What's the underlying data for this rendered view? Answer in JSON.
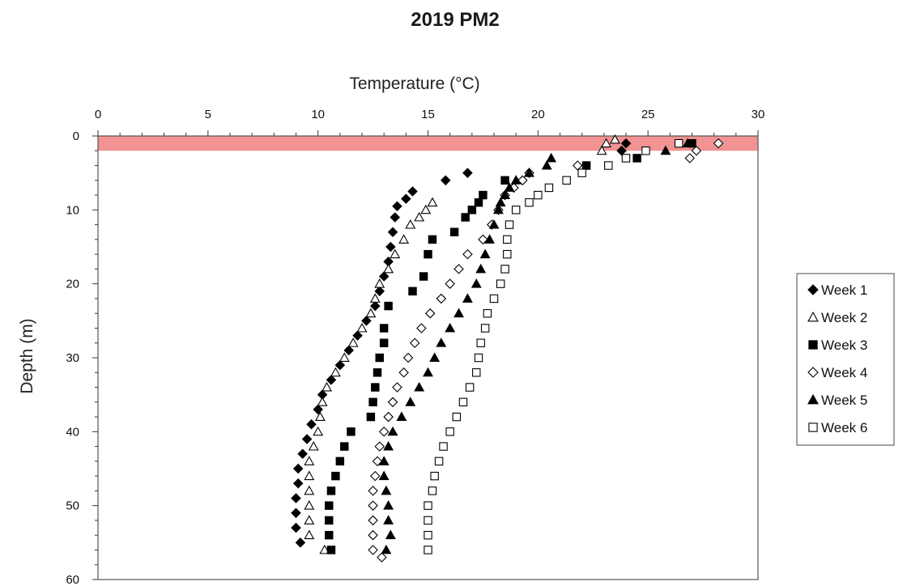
{
  "chart_data": {
    "type": "scatter",
    "title": "2019 PM2",
    "xlabel": "Temperature (°C)",
    "ylabel": "Depth (m)",
    "xlim": [
      0,
      30
    ],
    "ylim": [
      0,
      60
    ],
    "y_inverted": true,
    "x_axis_position": "top",
    "xticks": [
      0,
      5,
      10,
      15,
      20,
      25,
      30
    ],
    "yticks": [
      0,
      10,
      20,
      30,
      40,
      50,
      60
    ],
    "grid": false,
    "legend_position": "right",
    "highlight_band": {
      "depth_from": 0,
      "depth_to": 2,
      "color": "#f08080"
    },
    "series": [
      {
        "name": "Week 1",
        "marker": "diamond-filled",
        "points": [
          [
            24.0,
            1
          ],
          [
            23.8,
            2
          ],
          [
            16.8,
            5
          ],
          [
            15.8,
            6
          ],
          [
            14.3,
            7.5
          ],
          [
            14.0,
            8.5
          ],
          [
            13.6,
            9.5
          ],
          [
            13.5,
            11
          ],
          [
            13.4,
            13
          ],
          [
            13.3,
            15
          ],
          [
            13.2,
            17
          ],
          [
            13.0,
            19
          ],
          [
            12.8,
            21
          ],
          [
            12.6,
            23
          ],
          [
            12.2,
            25
          ],
          [
            11.8,
            27
          ],
          [
            11.4,
            29
          ],
          [
            11.0,
            31
          ],
          [
            10.6,
            33
          ],
          [
            10.2,
            35
          ],
          [
            10.0,
            37
          ],
          [
            9.7,
            39
          ],
          [
            9.5,
            41
          ],
          [
            9.3,
            43
          ],
          [
            9.1,
            45
          ],
          [
            9.1,
            47
          ],
          [
            9.0,
            49
          ],
          [
            9.0,
            51
          ],
          [
            9.0,
            53
          ],
          [
            9.2,
            55
          ]
        ]
      },
      {
        "name": "Week 2",
        "marker": "triangle-open",
        "points": [
          [
            23.5,
            0.5
          ],
          [
            23.1,
            1
          ],
          [
            22.9,
            2
          ],
          [
            15.2,
            9
          ],
          [
            14.9,
            10
          ],
          [
            14.6,
            11
          ],
          [
            14.2,
            12
          ],
          [
            13.9,
            14
          ],
          [
            13.5,
            16
          ],
          [
            13.2,
            18
          ],
          [
            12.8,
            20
          ],
          [
            12.6,
            22
          ],
          [
            12.4,
            24
          ],
          [
            12.0,
            26
          ],
          [
            11.6,
            28
          ],
          [
            11.2,
            30
          ],
          [
            10.8,
            32
          ],
          [
            10.4,
            34
          ],
          [
            10.2,
            36
          ],
          [
            10.1,
            38
          ],
          [
            10.0,
            40
          ],
          [
            9.8,
            42
          ],
          [
            9.6,
            44
          ],
          [
            9.6,
            46
          ],
          [
            9.6,
            48
          ],
          [
            9.6,
            50
          ],
          [
            9.6,
            52
          ],
          [
            9.6,
            54
          ],
          [
            10.3,
            56
          ]
        ]
      },
      {
        "name": "Week 3",
        "marker": "square-filled",
        "points": [
          [
            27.0,
            1
          ],
          [
            24.5,
            3
          ],
          [
            22.2,
            4
          ],
          [
            18.5,
            6
          ],
          [
            17.5,
            8
          ],
          [
            17.3,
            9
          ],
          [
            17.0,
            10
          ],
          [
            16.7,
            11
          ],
          [
            16.2,
            13
          ],
          [
            15.2,
            14
          ],
          [
            15.0,
            16
          ],
          [
            14.8,
            19
          ],
          [
            14.3,
            21
          ],
          [
            13.2,
            23
          ],
          [
            13.0,
            26
          ],
          [
            13.0,
            28
          ],
          [
            12.8,
            30
          ],
          [
            12.7,
            32
          ],
          [
            12.6,
            34
          ],
          [
            12.5,
            36
          ],
          [
            12.4,
            38
          ],
          [
            11.5,
            40
          ],
          [
            11.2,
            42
          ],
          [
            11.0,
            44
          ],
          [
            10.8,
            46
          ],
          [
            10.6,
            48
          ],
          [
            10.5,
            50
          ],
          [
            10.5,
            52
          ],
          [
            10.5,
            54
          ],
          [
            10.6,
            56
          ]
        ]
      },
      {
        "name": "Week 4",
        "marker": "diamond-open",
        "points": [
          [
            28.2,
            1
          ],
          [
            27.2,
            2
          ],
          [
            26.9,
            3
          ],
          [
            21.8,
            4
          ],
          [
            19.6,
            5
          ],
          [
            19.3,
            6
          ],
          [
            18.9,
            7
          ],
          [
            18.5,
            8
          ],
          [
            18.2,
            10
          ],
          [
            17.9,
            12
          ],
          [
            17.5,
            14
          ],
          [
            16.8,
            16
          ],
          [
            16.4,
            18
          ],
          [
            16.0,
            20
          ],
          [
            15.6,
            22
          ],
          [
            15.1,
            24
          ],
          [
            14.7,
            26
          ],
          [
            14.4,
            28
          ],
          [
            14.1,
            30
          ],
          [
            13.9,
            32
          ],
          [
            13.6,
            34
          ],
          [
            13.4,
            36
          ],
          [
            13.2,
            38
          ],
          [
            13.0,
            40
          ],
          [
            12.8,
            42
          ],
          [
            12.7,
            44
          ],
          [
            12.6,
            46
          ],
          [
            12.5,
            48
          ],
          [
            12.5,
            50
          ],
          [
            12.5,
            52
          ],
          [
            12.5,
            54
          ],
          [
            12.5,
            56
          ],
          [
            12.9,
            57
          ]
        ]
      },
      {
        "name": "Week 5",
        "marker": "triangle-filled",
        "points": [
          [
            26.8,
            1
          ],
          [
            25.8,
            2
          ],
          [
            20.6,
            3
          ],
          [
            20.4,
            4
          ],
          [
            19.6,
            5
          ],
          [
            19.0,
            6
          ],
          [
            18.7,
            7
          ],
          [
            18.5,
            8
          ],
          [
            18.3,
            9
          ],
          [
            18.2,
            10
          ],
          [
            18.0,
            12
          ],
          [
            17.8,
            14
          ],
          [
            17.6,
            16
          ],
          [
            17.4,
            18
          ],
          [
            17.2,
            20
          ],
          [
            16.8,
            22
          ],
          [
            16.4,
            24
          ],
          [
            16.0,
            26
          ],
          [
            15.6,
            28
          ],
          [
            15.3,
            30
          ],
          [
            15.0,
            32
          ],
          [
            14.6,
            34
          ],
          [
            14.2,
            36
          ],
          [
            13.8,
            38
          ],
          [
            13.4,
            40
          ],
          [
            13.2,
            42
          ],
          [
            13.0,
            44
          ],
          [
            13.0,
            46
          ],
          [
            13.1,
            48
          ],
          [
            13.2,
            50
          ],
          [
            13.2,
            52
          ],
          [
            13.3,
            54
          ],
          [
            13.1,
            56
          ]
        ]
      },
      {
        "name": "Week 6",
        "marker": "square-open",
        "points": [
          [
            26.4,
            1
          ],
          [
            24.9,
            2
          ],
          [
            24.0,
            3
          ],
          [
            23.2,
            4
          ],
          [
            22.0,
            5
          ],
          [
            21.3,
            6
          ],
          [
            20.5,
            7
          ],
          [
            20.0,
            8
          ],
          [
            19.6,
            9
          ],
          [
            19.0,
            10
          ],
          [
            18.7,
            12
          ],
          [
            18.6,
            14
          ],
          [
            18.6,
            16
          ],
          [
            18.5,
            18
          ],
          [
            18.3,
            20
          ],
          [
            18.0,
            22
          ],
          [
            17.7,
            24
          ],
          [
            17.6,
            26
          ],
          [
            17.4,
            28
          ],
          [
            17.3,
            30
          ],
          [
            17.2,
            32
          ],
          [
            16.9,
            34
          ],
          [
            16.6,
            36
          ],
          [
            16.3,
            38
          ],
          [
            16.0,
            40
          ],
          [
            15.7,
            42
          ],
          [
            15.5,
            44
          ],
          [
            15.3,
            46
          ],
          [
            15.2,
            48
          ],
          [
            15.0,
            50
          ],
          [
            15.0,
            52
          ],
          [
            15.0,
            54
          ],
          [
            15.0,
            56
          ]
        ]
      }
    ]
  }
}
